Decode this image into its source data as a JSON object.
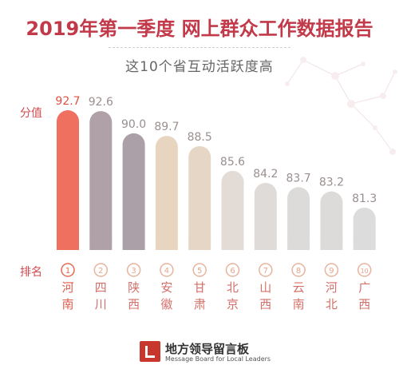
{
  "header": {
    "title": "2019年第一季度  网上群众工作数据报告",
    "subtitle": "这10个省互动活跃度高"
  },
  "labels": {
    "value_axis": "分值",
    "rank_axis": "排名"
  },
  "colors": {
    "title": "#c23a4a",
    "highlight": "#f07060",
    "bars": [
      "#f07060",
      "#b0a0a8",
      "#aba0a8",
      "#e8d5c0",
      "#e6d6c6",
      "#e2dbd6",
      "#dfdbd8",
      "#dddbd9",
      "#dcdbda",
      "#dcdcdc"
    ]
  },
  "chart_data": {
    "type": "bar",
    "categories": [
      "河南",
      "四川",
      "陕西",
      "安徽",
      "甘肃",
      "北京",
      "山西",
      "云南",
      "河北",
      "广西"
    ],
    "values": [
      92.7,
      92.6,
      90.0,
      89.7,
      88.5,
      85.6,
      84.2,
      83.7,
      83.2,
      81.3
    ],
    "value_labels": [
      "92.7",
      "92.6",
      "90.0",
      "89.7",
      "88.5",
      "85.6",
      "84.2",
      "83.7",
      "83.2",
      "81.3"
    ],
    "ranks": [
      "1",
      "2",
      "3",
      "4",
      "5",
      "6",
      "7",
      "8",
      "9",
      "10"
    ],
    "ylabel": "分值",
    "xlabel": "排名",
    "grid": false,
    "legend": "none"
  },
  "logo": {
    "name": "地方领导留言板",
    "tagline": "Message Board for Local Leaders"
  }
}
